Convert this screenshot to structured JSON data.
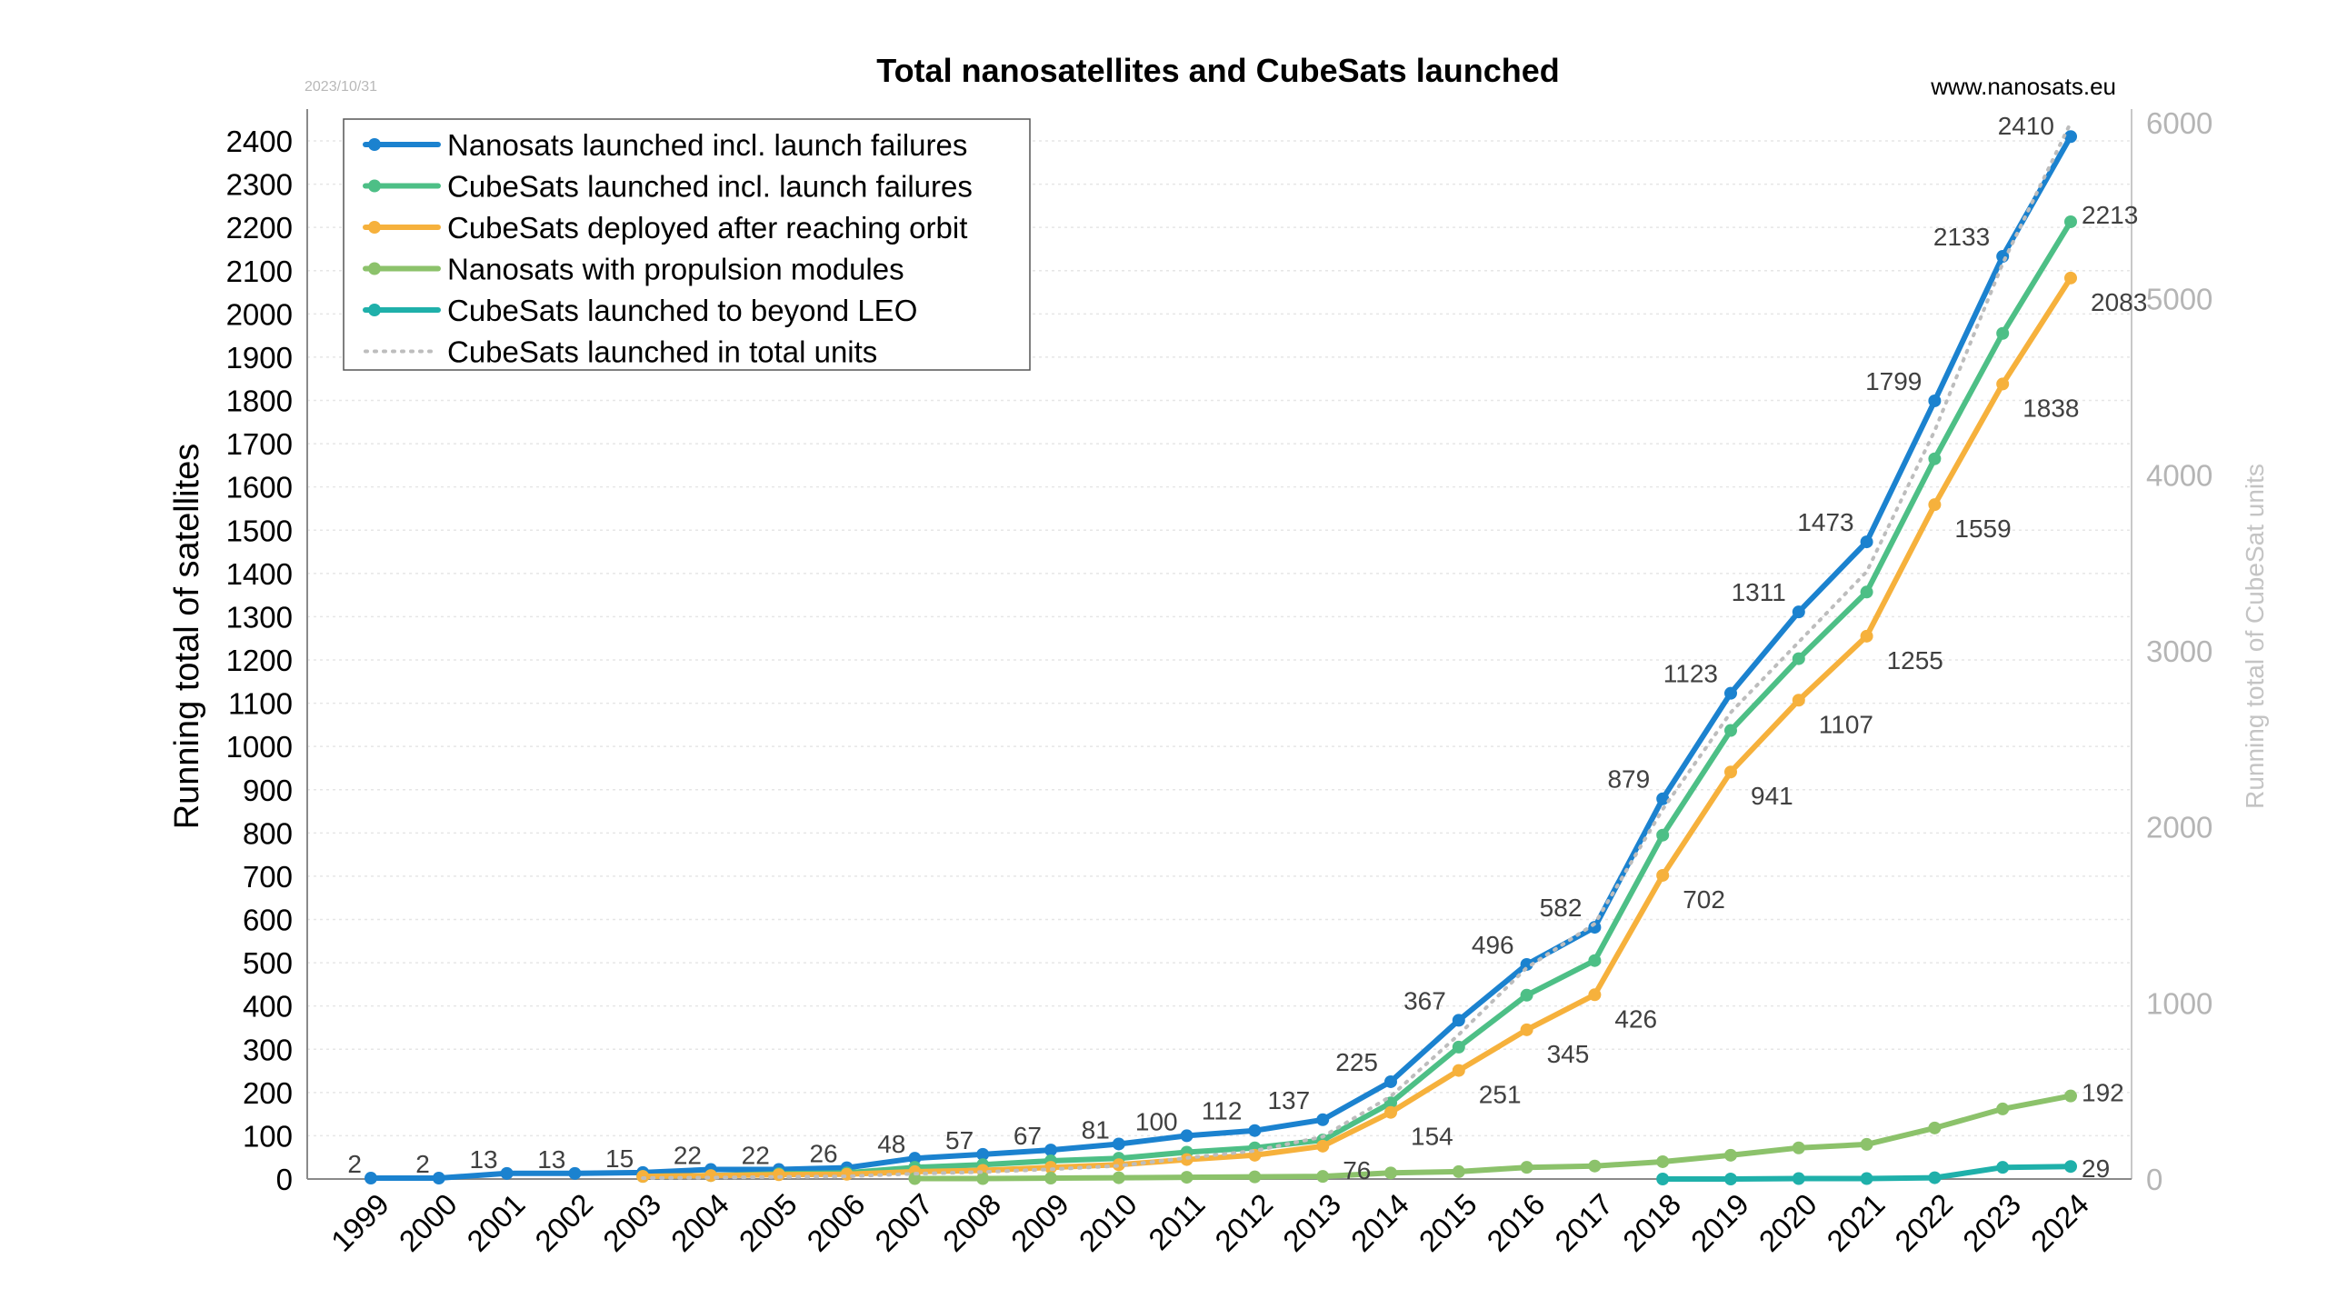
{
  "chart_data": {
    "type": "line",
    "title": "Total nanosatellites and CubeSats launched",
    "date_stamp": "2023/10/31",
    "source": "www.nanosats.eu",
    "ylabel": "Running total of satellites",
    "y2label": "Running total of CubeSat units",
    "ylim": [
      0,
      2400
    ],
    "y_ticks": [
      0,
      100,
      200,
      300,
      400,
      500,
      600,
      700,
      800,
      900,
      1000,
      1100,
      1200,
      1300,
      1400,
      1500,
      1600,
      1700,
      1800,
      1900,
      2000,
      2100,
      2200,
      2300,
      2400
    ],
    "y2lim": [
      0,
      6000
    ],
    "y2_ticks": [
      0,
      1000,
      2000,
      3000,
      4000,
      5000,
      6000
    ],
    "categories": [
      "1999",
      "2000",
      "2001",
      "2002",
      "2003",
      "2004",
      "2005",
      "2006",
      "2007",
      "2008",
      "2009",
      "2010",
      "2011",
      "2012",
      "2013",
      "2014",
      "2015",
      "2016",
      "2017",
      "2018",
      "2019",
      "2020",
      "2021",
      "2022",
      "2023",
      "2024"
    ],
    "grid": true,
    "legend_position": "top-left",
    "series": [
      {
        "name": "Nanosats launched incl. launch failures",
        "color": "#1b82cf",
        "style": "solid",
        "markers": true,
        "axis": "left",
        "values": [
          2,
          2,
          13,
          13,
          15,
          22,
          22,
          26,
          48,
          57,
          67,
          81,
          100,
          112,
          137,
          225,
          367,
          496,
          582,
          879,
          1123,
          1311,
          1473,
          1799,
          2133,
          2410
        ],
        "labels": [
          "2",
          "2",
          "13",
          "13",
          "15",
          "22",
          "22",
          "26",
          "48",
          "57",
          "67",
          "81",
          "100",
          "112",
          "137",
          "225",
          "367",
          "496",
          "582",
          "879",
          "1123",
          "1311",
          "1473",
          "1799",
          "2133",
          "2410"
        ]
      },
      {
        "name": "CubeSats launched incl. launch failures",
        "color": "#4dbf86",
        "style": "solid",
        "markers": true,
        "axis": "left",
        "values": [
          null,
          null,
          null,
          null,
          6,
          8,
          12,
          14,
          27,
          33,
          42,
          48,
          62,
          72,
          90,
          176,
          305,
          425,
          505,
          795,
          1037,
          1203,
          1357,
          1665,
          1955,
          2213
        ],
        "labels": [
          "",
          "",
          "",
          "",
          "",
          "",
          "",
          "",
          "",
          "",
          "",
          "",
          "",
          "",
          "",
          "",
          "",
          "",
          "",
          "",
          "",
          "",
          "",
          "",
          "",
          "2213"
        ]
      },
      {
        "name": "CubeSats deployed after reaching orbit",
        "color": "#f6b13c",
        "style": "solid",
        "markers": true,
        "axis": "left",
        "values": [
          null,
          null,
          null,
          null,
          6,
          8,
          10,
          11,
          17,
          20,
          27,
          33,
          45,
          55,
          76,
          154,
          251,
          345,
          426,
          702,
          941,
          1107,
          1255,
          1559,
          1838,
          2083
        ],
        "labels": [
          "",
          "",
          "",
          "",
          "",
          "",
          "",
          "",
          "",
          "",
          "",
          "",
          "",
          "",
          "76",
          "154",
          "251",
          "345",
          "426",
          "702",
          "941",
          "1107",
          "1255",
          "1559",
          "1838",
          "2083"
        ]
      },
      {
        "name": "Nanosats with propulsion modules",
        "color": "#8cc26b",
        "style": "solid",
        "markers": true,
        "axis": "left",
        "values": [
          null,
          null,
          null,
          null,
          null,
          null,
          null,
          null,
          1,
          1,
          2,
          3,
          4,
          5,
          6,
          14,
          17,
          27,
          30,
          40,
          55,
          72,
          80,
          118,
          162,
          192
        ],
        "labels": [
          "",
          "",
          "",
          "",
          "",
          "",
          "",
          "",
          "",
          "",
          "",
          "",
          "",
          "",
          "",
          "",
          "",
          "",
          "",
          "",
          "",
          "",
          "",
          "",
          "",
          "192"
        ]
      },
      {
        "name": "CubeSats launched to beyond LEO",
        "color": "#1fb0aa",
        "style": "solid",
        "markers": true,
        "axis": "left",
        "values": [
          null,
          null,
          null,
          null,
          null,
          null,
          null,
          null,
          null,
          null,
          null,
          null,
          null,
          null,
          null,
          null,
          null,
          null,
          null,
          0,
          0,
          1,
          1,
          3,
          27,
          29
        ],
        "labels": [
          "",
          "",
          "",
          "",
          "",
          "",
          "",
          "",
          "",
          "",
          "",
          "",
          "",
          "",
          "",
          "",
          "",
          "",
          "",
          "",
          "",
          "",
          "",
          "",
          "",
          "29"
        ]
      },
      {
        "name": "CubeSats launched in total units",
        "color": "#bdbdbd",
        "style": "dotted",
        "markers": false,
        "axis": "right",
        "values": [
          null,
          null,
          null,
          null,
          5,
          8,
          12,
          15,
          30,
          40,
          55,
          75,
          120,
          160,
          240,
          470,
          820,
          1200,
          1450,
          2100,
          2650,
          3050,
          3450,
          4250,
          5200,
          6000
        ],
        "labels": []
      }
    ]
  }
}
